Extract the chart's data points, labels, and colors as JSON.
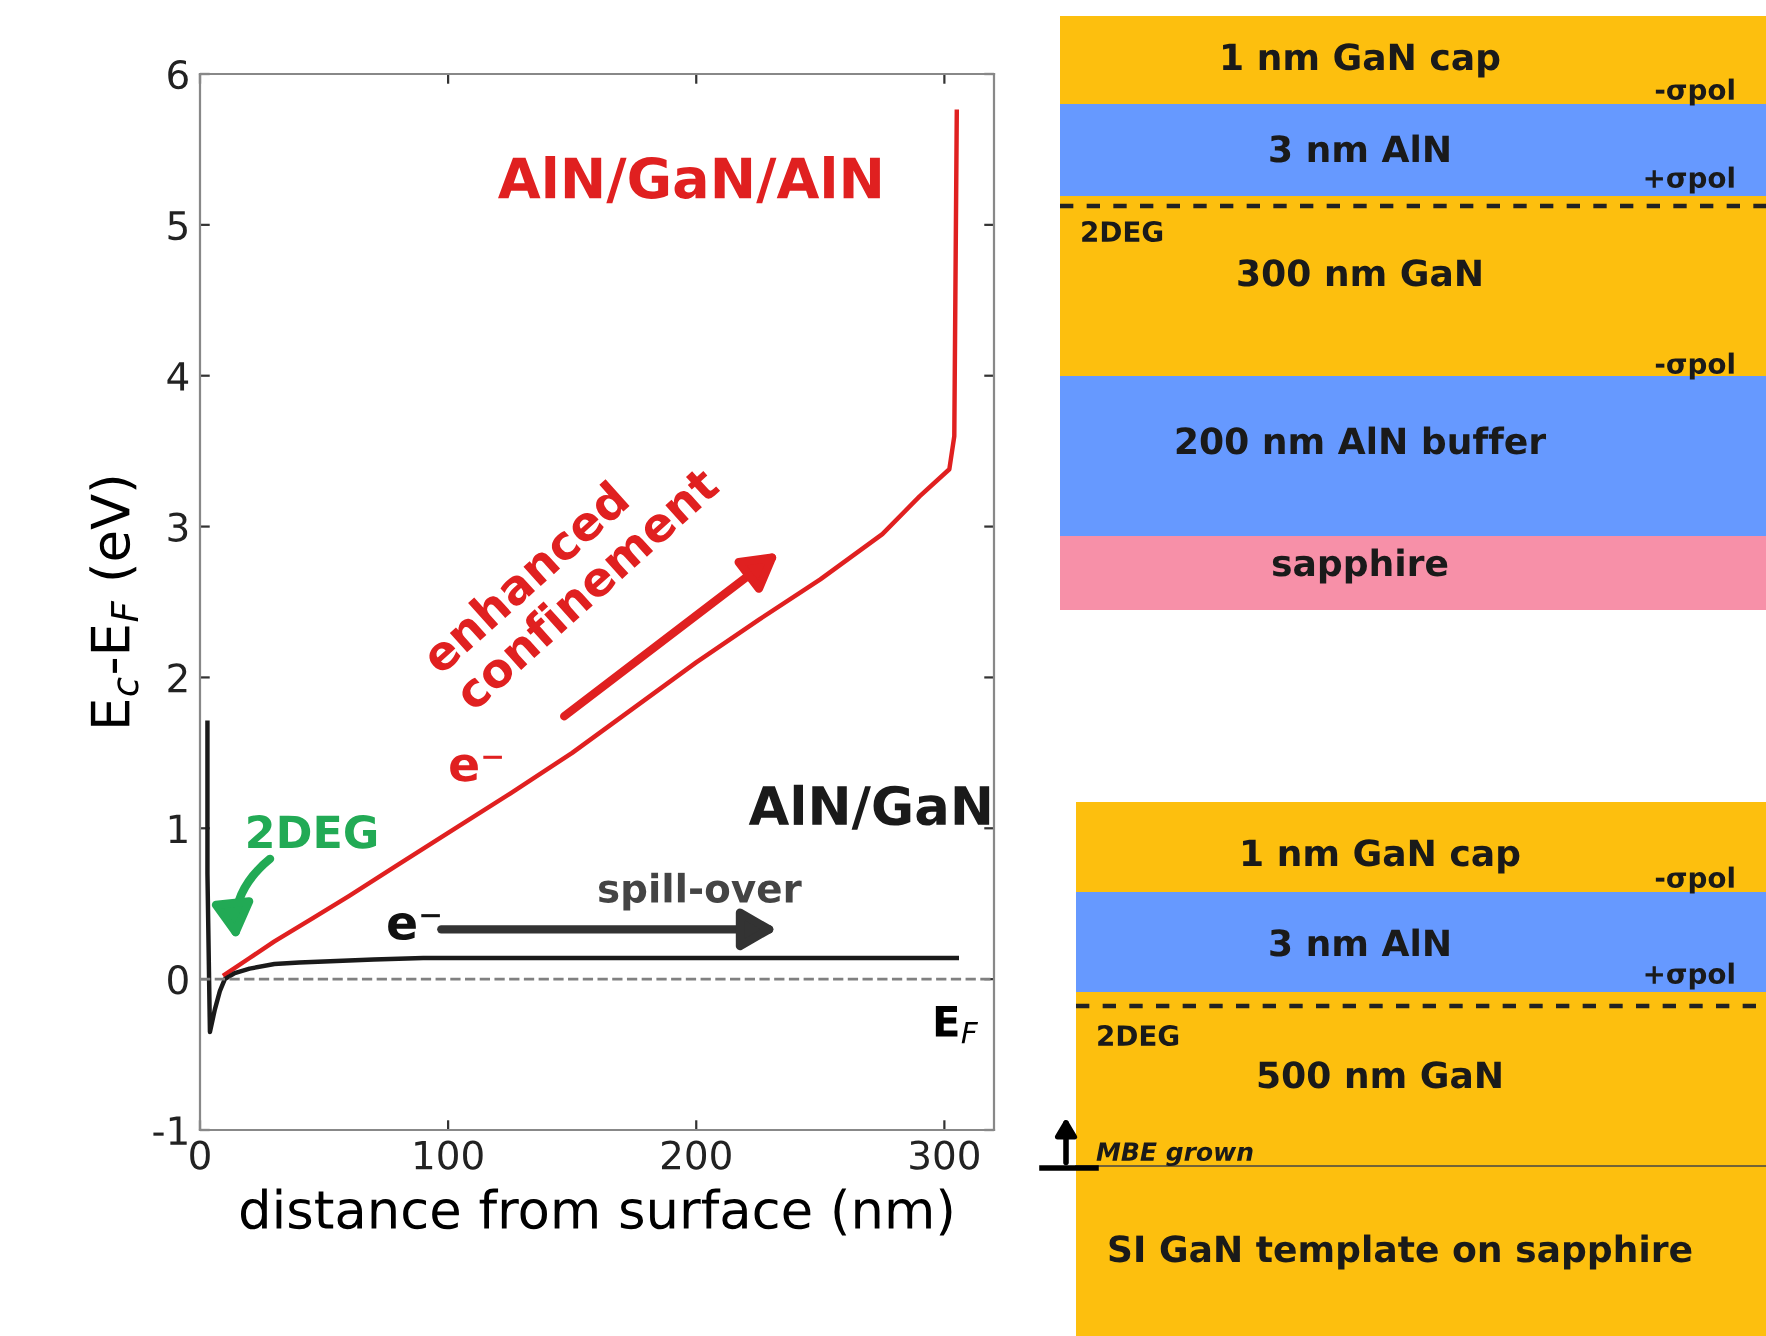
{
  "chart_data": [
    {
      "type": "line",
      "xlabel": "distance from surface (nm)",
      "ylabel": "E$_{c}$-E$_{F}$ (eV)",
      "xlim": [
        0,
        320
      ],
      "ylim": [
        -1,
        6
      ],
      "xticks": [
        0,
        100,
        200,
        300
      ],
      "yticks": [
        -1,
        0,
        1,
        2,
        3,
        4,
        5,
        6
      ],
      "grid": false,
      "legend": false,
      "marker": "none",
      "line_style": "solid",
      "series": [
        {
          "name": "AlN/GaN/AlN",
          "color": "#e02020",
          "x": [
            10,
            20,
            30,
            45,
            60,
            80,
            100,
            125,
            150,
            175,
            200,
            225,
            250,
            275,
            290,
            302,
            304,
            305
          ],
          "values": [
            0.03,
            0.14,
            0.25,
            0.4,
            0.55,
            0.76,
            0.97,
            1.23,
            1.5,
            1.8,
            2.1,
            2.38,
            2.65,
            2.95,
            3.2,
            3.38,
            3.6,
            5.75
          ]
        },
        {
          "name": "AlN/GaN",
          "color": "#1a1a1a",
          "x": [
            3,
            3,
            4,
            6,
            8,
            10,
            14,
            20,
            30,
            40,
            55,
            70,
            90,
            110,
            200,
            305
          ],
          "values": [
            1.7,
            0.7,
            -0.35,
            -0.2,
            -0.08,
            0.0,
            0.04,
            0.07,
            0.1,
            0.11,
            0.12,
            0.13,
            0.14,
            0.14,
            0.14,
            0.14
          ]
        }
      ],
      "ref_lines": [
        {
          "axis": "y",
          "value": 0,
          "label": "E$_{F}$",
          "color": "#808080",
          "line_style": "dashed"
        }
      ],
      "annotations": [
        "enhanced\nconfinement",
        "e⁻",
        "2DEG",
        "e⁻",
        "spill-over"
      ]
    },
    {
      "type": "other",
      "annotations": [
        "1 nm GaN cap",
        "-σpol",
        "3 nm AlN",
        "+σpol",
        "2DEG",
        "300 nm GaN",
        "-σpol",
        "200 nm AlN buffer",
        "sapphire"
      ]
    },
    {
      "type": "other",
      "annotations": [
        "1 nm GaN cap",
        "-σpol",
        "3 nm AlN",
        "+σpol",
        "2DEG",
        "500 nm GaN",
        "MBE grown",
        "SI GaN template on sapphire"
      ]
    }
  ]
}
